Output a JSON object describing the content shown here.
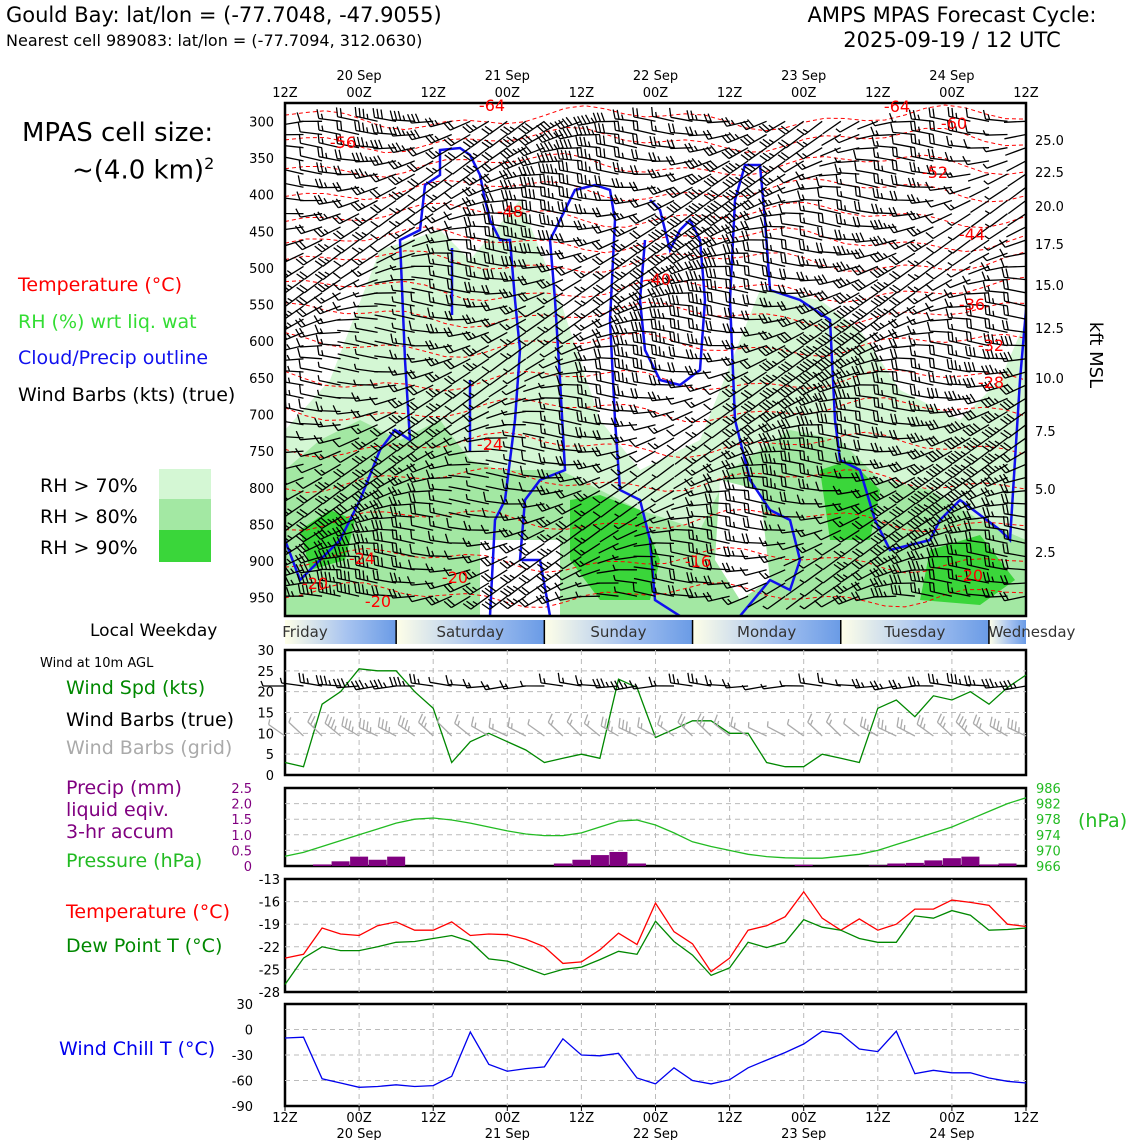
{
  "header": {
    "location_line": "Gould Bay: lat/lon = (-77.7048, -47.9055)",
    "cell_line": "Nearest cell 989083: lat/lon = (-77.7094, 312.0630)",
    "cycle_line1": "AMPS MPAS Forecast Cycle:",
    "cycle_line2": "2025-09-19 / 12 UTC",
    "cell_size_line1": "MPAS cell size:",
    "cell_size_line2": "~(4.0 km)",
    "cell_size_sup": "2"
  },
  "legend": {
    "temperature": "Temperature (°C)",
    "rh": "RH (%) wrt liq. wat",
    "cloud": "Cloud/Precip outline",
    "wind": "Wind Barbs (kts) (true)",
    "rh_levels": [
      {
        "label": "RH > 70%",
        "color": "#d4f7d4"
      },
      {
        "label": "RH > 80%",
        "color": "#a3e8a3"
      },
      {
        "label": "RH > 90%",
        "color": "#3ad63a"
      }
    ]
  },
  "colors": {
    "temperature": "#ff0000",
    "rh": "#33dd33",
    "cloud": "#1010ee",
    "wind_speed": "#008800",
    "pressure": "#22bb22",
    "precip": "#800080",
    "dew_point": "#008800",
    "wind_chill": "#0000ee",
    "grid_barbs": "#aaaaaa"
  },
  "time_axis": {
    "ticks": [
      "12Z",
      "00Z",
      "12Z",
      "00Z",
      "12Z",
      "00Z",
      "12Z",
      "00Z",
      "12Z",
      "00Z",
      "12Z"
    ],
    "dates": [
      "20 Sep",
      "21 Sep",
      "22 Sep",
      "23 Sep",
      "24 Sep"
    ]
  },
  "weekday": {
    "title": "Local Weekday",
    "days": [
      "Friday",
      "Saturday",
      "Sunday",
      "Monday",
      "Tuesday",
      "Wednesday"
    ]
  },
  "profile": {
    "pressure_levels": [
      "300",
      "350",
      "400",
      "450",
      "500",
      "550",
      "600",
      "650",
      "700",
      "750",
      "800",
      "850",
      "900",
      "950"
    ],
    "height_axis_label": "kft MSL",
    "height_ticks": [
      "25.0",
      "22.5",
      "20.0",
      "17.5",
      "15.0",
      "12.5",
      "10.0",
      "7.5",
      "5.0",
      "2.5"
    ],
    "temp_labels": [
      "-64",
      "-64",
      "-60",
      "-56",
      "-52",
      "-48",
      "-44",
      "-40",
      "-36",
      "-32",
      "-28",
      "-24",
      "-24",
      "-20",
      "-20",
      "-20",
      "-20",
      "-16"
    ]
  },
  "surface": {
    "wind_note": "Wind at 10m AGL",
    "wind_labels": [
      "Wind Spd (kts)",
      "Wind Barbs (true)",
      "Wind Barbs (grid)"
    ],
    "precip_labels": [
      "Precip (mm)",
      "liquid eqiv.",
      "3-hr accum"
    ],
    "pressure_label": "Pressure (hPa)",
    "pressure_unit": "(hPa)",
    "temp_label": "Temperature (°C)",
    "dew_label": "Dew Point T (°C)",
    "chill_label": "Wind Chill T (°C)"
  },
  "chart_data": [
    {
      "type": "line",
      "title": "Wind at 10m AGL",
      "ylabel": "Wind Spd (kts)",
      "ylim": [
        0,
        30
      ],
      "yticks": [
        "30",
        "25",
        "20",
        "15",
        "10",
        "5",
        "0"
      ],
      "x_hours": [
        0,
        3,
        6,
        9,
        12,
        15,
        18,
        21,
        24,
        27,
        30,
        33,
        36,
        39,
        42,
        45,
        48,
        51,
        54,
        57,
        60,
        63,
        66,
        69,
        72,
        75,
        78,
        81,
        84,
        87,
        90,
        93,
        96,
        99,
        102,
        105,
        108,
        111,
        114,
        117,
        120
      ],
      "series": [
        {
          "name": "Wind Spd (kts)",
          "values": [
            3,
            2,
            17,
            20,
            25.5,
            25,
            25,
            20,
            16,
            3,
            8,
            10,
            8,
            6,
            3,
            4,
            5,
            4,
            23,
            21,
            9,
            11,
            13,
            13,
            10,
            10,
            3,
            2,
            2,
            5,
            4,
            3,
            16,
            18,
            14,
            19,
            18,
            20,
            17,
            21,
            24
          ]
        }
      ]
    },
    {
      "type": "bar",
      "ylabel": "Precip (mm) liquid eqiv. 3-hr accum",
      "ylim": [
        0,
        2.5
      ],
      "yticks": [
        "2.5",
        "2.0",
        "1.5",
        "1.0",
        "0.5",
        "0"
      ],
      "x_hours": [
        6,
        9,
        12,
        15,
        18,
        45,
        48,
        51,
        54,
        57,
        84,
        96,
        99,
        102,
        105,
        108,
        111,
        114,
        117
      ],
      "values": [
        0.05,
        0.15,
        0.3,
        0.2,
        0.3,
        0.08,
        0.2,
        0.35,
        0.45,
        0.08,
        0.04,
        0.02,
        0.08,
        0.1,
        0.18,
        0.25,
        0.3,
        0.05,
        0.08
      ]
    },
    {
      "type": "line",
      "ylabel": "Pressure (hPa)",
      "ylim": [
        966,
        986
      ],
      "yticks": [
        "986",
        "982",
        "978",
        "974",
        "970",
        "966"
      ],
      "x_hours": [
        0,
        3,
        6,
        9,
        12,
        15,
        18,
        21,
        24,
        27,
        30,
        33,
        36,
        39,
        42,
        45,
        48,
        51,
        54,
        57,
        60,
        63,
        66,
        69,
        72,
        75,
        78,
        81,
        84,
        87,
        90,
        93,
        96,
        99,
        102,
        105,
        108,
        111,
        114,
        117,
        120
      ],
      "series": [
        {
          "name": "Pressure (hPa)",
          "values": [
            968.5,
            969.5,
            971,
            972.5,
            974,
            975.5,
            977,
            978,
            978.3,
            977.8,
            977,
            976,
            975,
            974.2,
            973.8,
            973.8,
            974.5,
            976,
            977.5,
            977.8,
            976.5,
            974.5,
            972.2,
            971,
            970,
            969,
            968.4,
            968.1,
            968,
            968,
            968.5,
            969,
            970,
            971.5,
            973,
            974.5,
            976,
            978,
            980,
            982,
            983.5
          ]
        }
      ]
    },
    {
      "type": "line",
      "ylim": [
        -28,
        -13
      ],
      "yticks": [
        "-13",
        "-16",
        "-19",
        "-22",
        "-25",
        "-28"
      ],
      "x_hours": [
        0,
        3,
        6,
        9,
        12,
        15,
        18,
        21,
        24,
        27,
        30,
        33,
        36,
        39,
        42,
        45,
        48,
        51,
        54,
        57,
        60,
        63,
        66,
        69,
        72,
        75,
        78,
        81,
        84,
        87,
        90,
        93,
        96,
        99,
        102,
        105,
        108,
        111,
        114,
        117,
        120
      ],
      "series": [
        {
          "name": "Temperature (°C)",
          "values": [
            -23.5,
            -23,
            -19.5,
            -20.3,
            -20.5,
            -19.2,
            -18.7,
            -19.8,
            -19.8,
            -18.7,
            -20.5,
            -20.3,
            -20.4,
            -21,
            -22,
            -24.2,
            -24,
            -22.4,
            -20.2,
            -21.7,
            -16.2,
            -20,
            -21.6,
            -25.3,
            -23.5,
            -19.8,
            -19.2,
            -18,
            -14.7,
            -18.2,
            -19.8,
            -18.3,
            -19.8,
            -19,
            -17,
            -17,
            -15.8,
            -16.1,
            -16.5,
            -19,
            -19.3
          ]
        },
        {
          "name": "Dew Point T (°C)",
          "values": [
            -27,
            -23.5,
            -22,
            -22.5,
            -22.5,
            -22,
            -21.4,
            -21.3,
            -20.9,
            -20.5,
            -21.3,
            -23.6,
            -23.9,
            -24.8,
            -25.7,
            -25,
            -24.7,
            -23.7,
            -22.6,
            -23,
            -18.6,
            -21.3,
            -23.1,
            -25.8,
            -24.8,
            -21.4,
            -22.1,
            -21.4,
            -18.4,
            -19.4,
            -19.8,
            -20.9,
            -21.4,
            -21.4,
            -17.9,
            -18.2,
            -17.2,
            -17.8,
            -19.8,
            -19.7,
            -19.5
          ]
        }
      ]
    },
    {
      "type": "line",
      "ylabel": "Wind Chill T (°C)",
      "ylim": [
        -90,
        30
      ],
      "yticks": [
        "30",
        "0",
        "-30",
        "-60",
        "-90"
      ],
      "x_hours": [
        0,
        3,
        6,
        9,
        12,
        15,
        18,
        21,
        24,
        27,
        30,
        33,
        36,
        39,
        42,
        45,
        48,
        51,
        54,
        57,
        60,
        63,
        66,
        69,
        72,
        75,
        78,
        81,
        84,
        87,
        90,
        93,
        96,
        99,
        102,
        105,
        108,
        111,
        114,
        117,
        120
      ],
      "series": [
        {
          "name": "Wind Chill T (°C)",
          "values": [
            -10,
            -9,
            -58,
            -63,
            -68,
            -67,
            -65,
            -67,
            -66,
            -55,
            -3,
            -41,
            -49,
            -46,
            -44,
            -11,
            -30,
            -31,
            -28,
            -57,
            -64,
            -45,
            -60,
            -64,
            -59,
            -45,
            -36,
            -27,
            -17,
            -2,
            -5,
            -23,
            -26,
            -2,
            -52,
            -48,
            -51,
            -51,
            -57,
            -61,
            -63
          ]
        }
      ]
    }
  ]
}
